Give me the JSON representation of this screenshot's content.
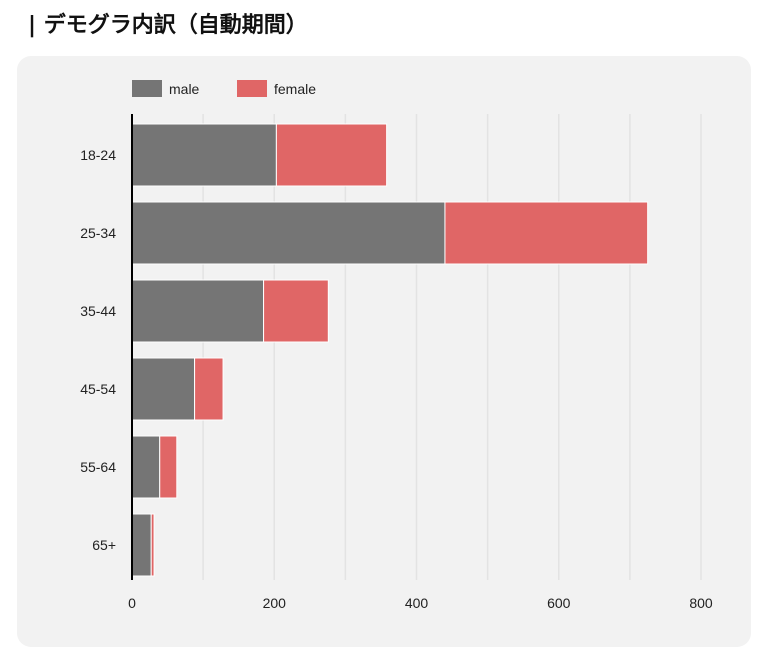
{
  "header": {
    "title": "| デモグラ内訳（自動期間）"
  },
  "colors": {
    "male": "#757575",
    "female": "#e06666",
    "panel_bg": "#f2f2f2",
    "grid": "#e3e3e3",
    "axis": "#000000"
  },
  "chart_data": {
    "type": "bar",
    "orientation": "horizontal",
    "stacked": true,
    "categories": [
      "18-24",
      "25-34",
      "35-44",
      "45-54",
      "55-64",
      "65+"
    ],
    "series": [
      {
        "name": "male",
        "values": [
          203,
          440,
          185,
          88,
          39,
          27
        ]
      },
      {
        "name": "female",
        "values": [
          155,
          285,
          91,
          40,
          24,
          4
        ]
      }
    ],
    "xlim": [
      0,
      800
    ],
    "xticks": [
      0,
      200,
      400,
      600,
      800
    ],
    "xlabel": "",
    "ylabel": "",
    "grid": true,
    "legend": "top-left"
  }
}
